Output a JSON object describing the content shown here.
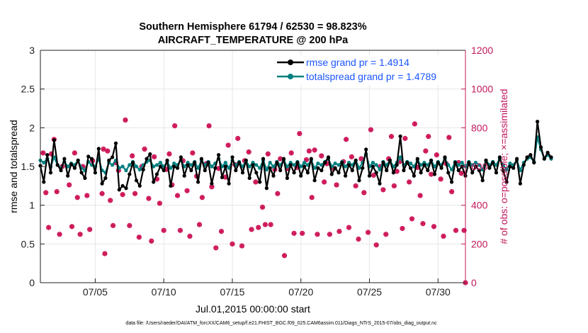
{
  "colors": {
    "rmse": "#000000",
    "spread": "#008080",
    "obs": "#cc1155",
    "right_axis": "#c2185b",
    "legend_text": "#1a56ff"
  },
  "chart_data": {
    "type": "line",
    "title_line1": "Southern Hemisphere 61794 / 62530 = 98.823%",
    "title_line2": "AIRCRAFT_TEMPERATURE @ 200 hPa",
    "ylabel_left": "rmse and totalspread",
    "ylabel_right": "# of obs: o=possible; ×=assimilated",
    "xlabel": "Jul.01,2015 00:00:00 start",
    "footer": "data file: /Users/raeder/DAI/ATM_forcXX/CAM6_setup/f.e21.FHIST_BGC.f09_025.CAM6assim.011/Diags_NTrS_2015-07/obs_diag_output.nc",
    "xlim": [
      1,
      32
    ],
    "ylim_left": [
      0,
      3
    ],
    "ylim_right": [
      0,
      1200
    ],
    "yticks_left": [
      "0",
      "0.5",
      "1",
      "1.5",
      "2",
      "2.5",
      "3"
    ],
    "yticks_right": [
      "0",
      "200",
      "400",
      "600",
      "800",
      "1000",
      "1200"
    ],
    "xticks": [
      {
        "value": 5,
        "label": "07/05"
      },
      {
        "value": 10,
        "label": "07/10"
      },
      {
        "value": 15,
        "label": "07/15"
      },
      {
        "value": 20,
        "label": "07/20"
      },
      {
        "value": 25,
        "label": "07/25"
      },
      {
        "value": 30,
        "label": "07/30"
      }
    ],
    "x_start": 1.0,
    "x_step": 0.25,
    "series": [
      {
        "name": "rmse grand pr = 1.4914",
        "values": [
          1.51,
          1.3,
          1.65,
          1.42,
          1.84,
          1.52,
          1.45,
          1.6,
          1.38,
          1.53,
          1.48,
          1.58,
          1.42,
          1.35,
          1.63,
          1.6,
          1.42,
          1.73,
          1.28,
          1.35,
          1.58,
          1.62,
          1.8,
          1.2,
          1.25,
          1.22,
          1.4,
          1.55,
          1.32,
          1.25,
          1.46,
          1.6,
          1.66,
          1.3,
          1.4,
          1.5,
          1.45,
          1.58,
          1.25,
          1.5,
          1.48,
          1.62,
          1.38,
          1.52,
          1.45,
          1.55,
          1.3,
          1.6,
          1.45,
          1.55,
          1.28,
          1.48,
          1.65,
          1.36,
          1.5,
          1.28,
          1.62,
          1.45,
          1.55,
          1.42,
          1.58,
          1.35,
          1.52,
          1.42,
          1.3,
          1.6,
          1.22,
          1.48,
          1.38,
          1.55,
          1.45,
          1.6,
          1.35,
          1.52,
          1.42,
          1.55,
          1.38,
          1.5,
          1.42,
          1.6,
          1.32,
          1.48,
          1.45,
          1.55,
          1.62,
          1.4,
          1.48,
          1.42,
          1.55,
          1.38,
          1.52,
          1.45,
          1.58,
          1.32,
          1.48,
          1.72,
          1.38,
          1.5,
          1.42,
          1.28,
          1.55,
          1.45,
          1.58,
          1.42,
          1.52,
          1.89,
          1.45,
          1.55,
          1.48,
          1.38,
          1.6,
          1.42,
          1.52,
          1.45,
          1.58,
          1.4,
          1.55,
          1.48,
          1.62,
          1.42,
          1.3,
          1.55,
          1.45,
          1.5,
          1.38,
          1.55,
          1.42,
          1.5,
          1.45,
          1.32,
          1.58,
          1.48,
          1.55,
          1.42,
          1.62,
          1.45,
          1.3,
          1.5,
          1.48,
          1.6,
          1.28,
          1.52,
          1.62,
          1.65,
          1.55,
          2.08,
          1.75,
          1.6,
          1.68,
          1.62
        ]
      },
      {
        "name": "totalspread grand pr = 1.4789",
        "values": [
          1.58,
          1.55,
          1.6,
          1.5,
          1.62,
          1.52,
          1.48,
          1.56,
          1.5,
          1.54,
          1.52,
          1.58,
          1.48,
          1.45,
          1.56,
          1.52,
          1.5,
          1.6,
          1.45,
          1.42,
          1.55,
          1.52,
          1.58,
          1.48,
          1.5,
          1.45,
          1.52,
          1.56,
          1.5,
          1.46,
          1.52,
          1.56,
          1.58,
          1.5,
          1.52,
          1.55,
          1.5,
          1.56,
          1.48,
          1.54,
          1.52,
          1.58,
          1.5,
          1.55,
          1.52,
          1.56,
          1.48,
          1.58,
          1.52,
          1.56,
          1.5,
          1.54,
          1.6,
          1.5,
          1.55,
          1.48,
          1.58,
          1.52,
          1.56,
          1.5,
          1.57,
          1.5,
          1.55,
          1.52,
          1.48,
          1.58,
          1.46,
          1.55,
          1.5,
          1.56,
          1.52,
          1.58,
          1.5,
          1.55,
          1.52,
          1.56,
          1.5,
          1.55,
          1.52,
          1.58,
          1.48,
          1.54,
          1.52,
          1.56,
          1.6,
          1.5,
          1.54,
          1.52,
          1.56,
          1.5,
          1.55,
          1.52,
          1.58,
          1.48,
          1.55,
          1.66,
          1.5,
          1.55,
          1.52,
          1.46,
          1.56,
          1.52,
          1.58,
          1.5,
          1.55,
          1.62,
          1.52,
          1.56,
          1.54,
          1.5,
          1.58,
          1.52,
          1.55,
          1.52,
          1.58,
          1.5,
          1.56,
          1.52,
          1.6,
          1.52,
          1.46,
          1.56,
          1.52,
          1.55,
          1.5,
          1.56,
          1.52,
          1.55,
          1.52,
          1.46,
          1.58,
          1.52,
          1.56,
          1.52,
          1.6,
          1.52,
          1.46,
          1.54,
          1.52,
          1.58,
          1.45,
          1.55,
          1.6,
          1.62,
          1.56,
          1.88,
          1.72,
          1.6,
          1.65,
          1.6
        ]
      }
    ],
    "obs_counts": [
      {
        "x": 1.2,
        "v": 670
      },
      {
        "x": 1.4,
        "v": 465
      },
      {
        "x": 1.6,
        "v": 285
      },
      {
        "x": 1.8,
        "v": 665
      },
      {
        "x": 2.0,
        "v": 740
      },
      {
        "x": 2.2,
        "v": 470
      },
      {
        "x": 2.4,
        "v": 250
      },
      {
        "x": 2.6,
        "v": 600
      },
      {
        "x": 3.1,
        "v": 505
      },
      {
        "x": 3.3,
        "v": 290
      },
      {
        "x": 3.5,
        "v": 670
      },
      {
        "x": 3.7,
        "v": 440
      },
      {
        "x": 3.9,
        "v": 250
      },
      {
        "x": 4.1,
        "v": 600
      },
      {
        "x": 4.4,
        "v": 450
      },
      {
        "x": 4.6,
        "v": 275
      },
      {
        "x": 4.8,
        "v": 630
      },
      {
        "x": 5.5,
        "v": 460
      },
      {
        "x": 5.6,
        "v": 690
      },
      {
        "x": 5.7,
        "v": 150
      },
      {
        "x": 5.9,
        "v": 680
      },
      {
        "x": 6.1,
        "v": 425
      },
      {
        "x": 6.3,
        "v": 295
      },
      {
        "x": 6.5,
        "v": 620
      },
      {
        "x": 6.7,
        "v": 580
      },
      {
        "x": 7.0,
        "v": 455
      },
      {
        "x": 7.2,
        "v": 840
      },
      {
        "x": 7.5,
        "v": 295
      },
      {
        "x": 7.7,
        "v": 655
      },
      {
        "x": 7.9,
        "v": 460
      },
      {
        "x": 8.2,
        "v": 235
      },
      {
        "x": 8.4,
        "v": 600
      },
      {
        "x": 8.6,
        "v": 690
      },
      {
        "x": 8.9,
        "v": 435
      },
      {
        "x": 9.1,
        "v": 215
      },
      {
        "x": 9.3,
        "v": 650
      },
      {
        "x": 9.5,
        "v": 535
      },
      {
        "x": 9.7,
        "v": 410
      },
      {
        "x": 10.0,
        "v": 270
      },
      {
        "x": 10.2,
        "v": 585
      },
      {
        "x": 10.4,
        "v": 665
      },
      {
        "x": 10.6,
        "v": 505
      },
      {
        "x": 10.8,
        "v": 810
      },
      {
        "x": 11.0,
        "v": 450
      },
      {
        "x": 11.2,
        "v": 270
      },
      {
        "x": 11.4,
        "v": 630
      },
      {
        "x": 11.7,
        "v": 475
      },
      {
        "x": 11.9,
        "v": 240
      },
      {
        "x": 12.1,
        "v": 670
      },
      {
        "x": 12.4,
        "v": 550
      },
      {
        "x": 12.6,
        "v": 300
      },
      {
        "x": 12.8,
        "v": 440
      },
      {
        "x": 13.1,
        "v": 615
      },
      {
        "x": 13.3,
        "v": 810
      },
      {
        "x": 13.5,
        "v": 495
      },
      {
        "x": 13.8,
        "v": 180
      },
      {
        "x": 14.0,
        "v": 590
      },
      {
        "x": 14.2,
        "v": 265
      },
      {
        "x": 14.5,
        "v": 545
      },
      {
        "x": 14.7,
        "v": 710
      },
      {
        "x": 15.0,
        "v": 200
      },
      {
        "x": 15.2,
        "v": 610
      },
      {
        "x": 15.4,
        "v": 745
      },
      {
        "x": 15.7,
        "v": 190
      },
      {
        "x": 15.9,
        "v": 630
      },
      {
        "x": 16.2,
        "v": 675
      },
      {
        "x": 16.4,
        "v": 275
      },
      {
        "x": 16.7,
        "v": 520
      },
      {
        "x": 16.9,
        "v": 285
      },
      {
        "x": 17.2,
        "v": 390
      },
      {
        "x": 17.4,
        "v": 300
      },
      {
        "x": 17.6,
        "v": 665
      },
      {
        "x": 17.8,
        "v": 300
      },
      {
        "x": 18.1,
        "v": 585
      },
      {
        "x": 18.3,
        "v": 460
      },
      {
        "x": 18.5,
        "v": 640
      },
      {
        "x": 18.8,
        "v": 140
      },
      {
        "x": 19.0,
        "v": 590
      },
      {
        "x": 19.3,
        "v": 670
      },
      {
        "x": 19.5,
        "v": 255
      },
      {
        "x": 19.7,
        "v": 595
      },
      {
        "x": 19.9,
        "v": 770
      },
      {
        "x": 20.1,
        "v": 255
      },
      {
        "x": 20.4,
        "v": 635
      },
      {
        "x": 20.6,
        "v": 680
      },
      {
        "x": 20.8,
        "v": 440
      },
      {
        "x": 21.0,
        "v": 685
      },
      {
        "x": 21.2,
        "v": 250
      },
      {
        "x": 21.5,
        "v": 655
      },
      {
        "x": 21.7,
        "v": 520
      },
      {
        "x": 21.9,
        "v": 615
      },
      {
        "x": 22.1,
        "v": 250
      },
      {
        "x": 22.4,
        "v": 590
      },
      {
        "x": 22.6,
        "v": 505
      },
      {
        "x": 22.8,
        "v": 265
      },
      {
        "x": 23.1,
        "v": 625
      },
      {
        "x": 23.3,
        "v": 740
      },
      {
        "x": 23.5,
        "v": 285
      },
      {
        "x": 23.7,
        "v": 650
      },
      {
        "x": 24.0,
        "v": 500
      },
      {
        "x": 24.2,
        "v": 225
      },
      {
        "x": 24.4,
        "v": 640
      },
      {
        "x": 24.6,
        "v": 465
      },
      {
        "x": 24.9,
        "v": 260
      },
      {
        "x": 25.1,
        "v": 790
      },
      {
        "x": 25.3,
        "v": 555
      },
      {
        "x": 25.5,
        "v": 195
      },
      {
        "x": 25.8,
        "v": 600
      },
      {
        "x": 26.0,
        "v": 480
      },
      {
        "x": 26.2,
        "v": 250
      },
      {
        "x": 26.4,
        "v": 640
      },
      {
        "x": 26.6,
        "v": 755
      },
      {
        "x": 26.8,
        "v": 500
      },
      {
        "x": 27.0,
        "v": 575
      },
      {
        "x": 27.2,
        "v": 625
      },
      {
        "x": 27.4,
        "v": 280
      },
      {
        "x": 27.6,
        "v": 745
      },
      {
        "x": 27.9,
        "v": 520
      },
      {
        "x": 28.1,
        "v": 330
      },
      {
        "x": 28.3,
        "v": 820
      },
      {
        "x": 28.5,
        "v": 595
      },
      {
        "x": 28.7,
        "v": 450
      },
      {
        "x": 28.9,
        "v": 305
      },
      {
        "x": 29.1,
        "v": 680
      },
      {
        "x": 29.3,
        "v": 755
      },
      {
        "x": 29.5,
        "v": 560
      },
      {
        "x": 29.7,
        "v": 290
      },
      {
        "x": 29.9,
        "v": 660
      },
      {
        "x": 30.2,
        "v": 535
      },
      {
        "x": 30.4,
        "v": 240
      },
      {
        "x": 30.6,
        "v": 615
      },
      {
        "x": 30.8,
        "v": 750
      },
      {
        "x": 31.0,
        "v": 470
      },
      {
        "x": 31.3,
        "v": 270
      },
      {
        "x": 31.5,
        "v": 620
      },
      {
        "x": 31.7,
        "v": 565
      },
      {
        "x": 31.9,
        "v": 270
      },
      {
        "x": 32.0,
        "v": 0
      }
    ]
  }
}
